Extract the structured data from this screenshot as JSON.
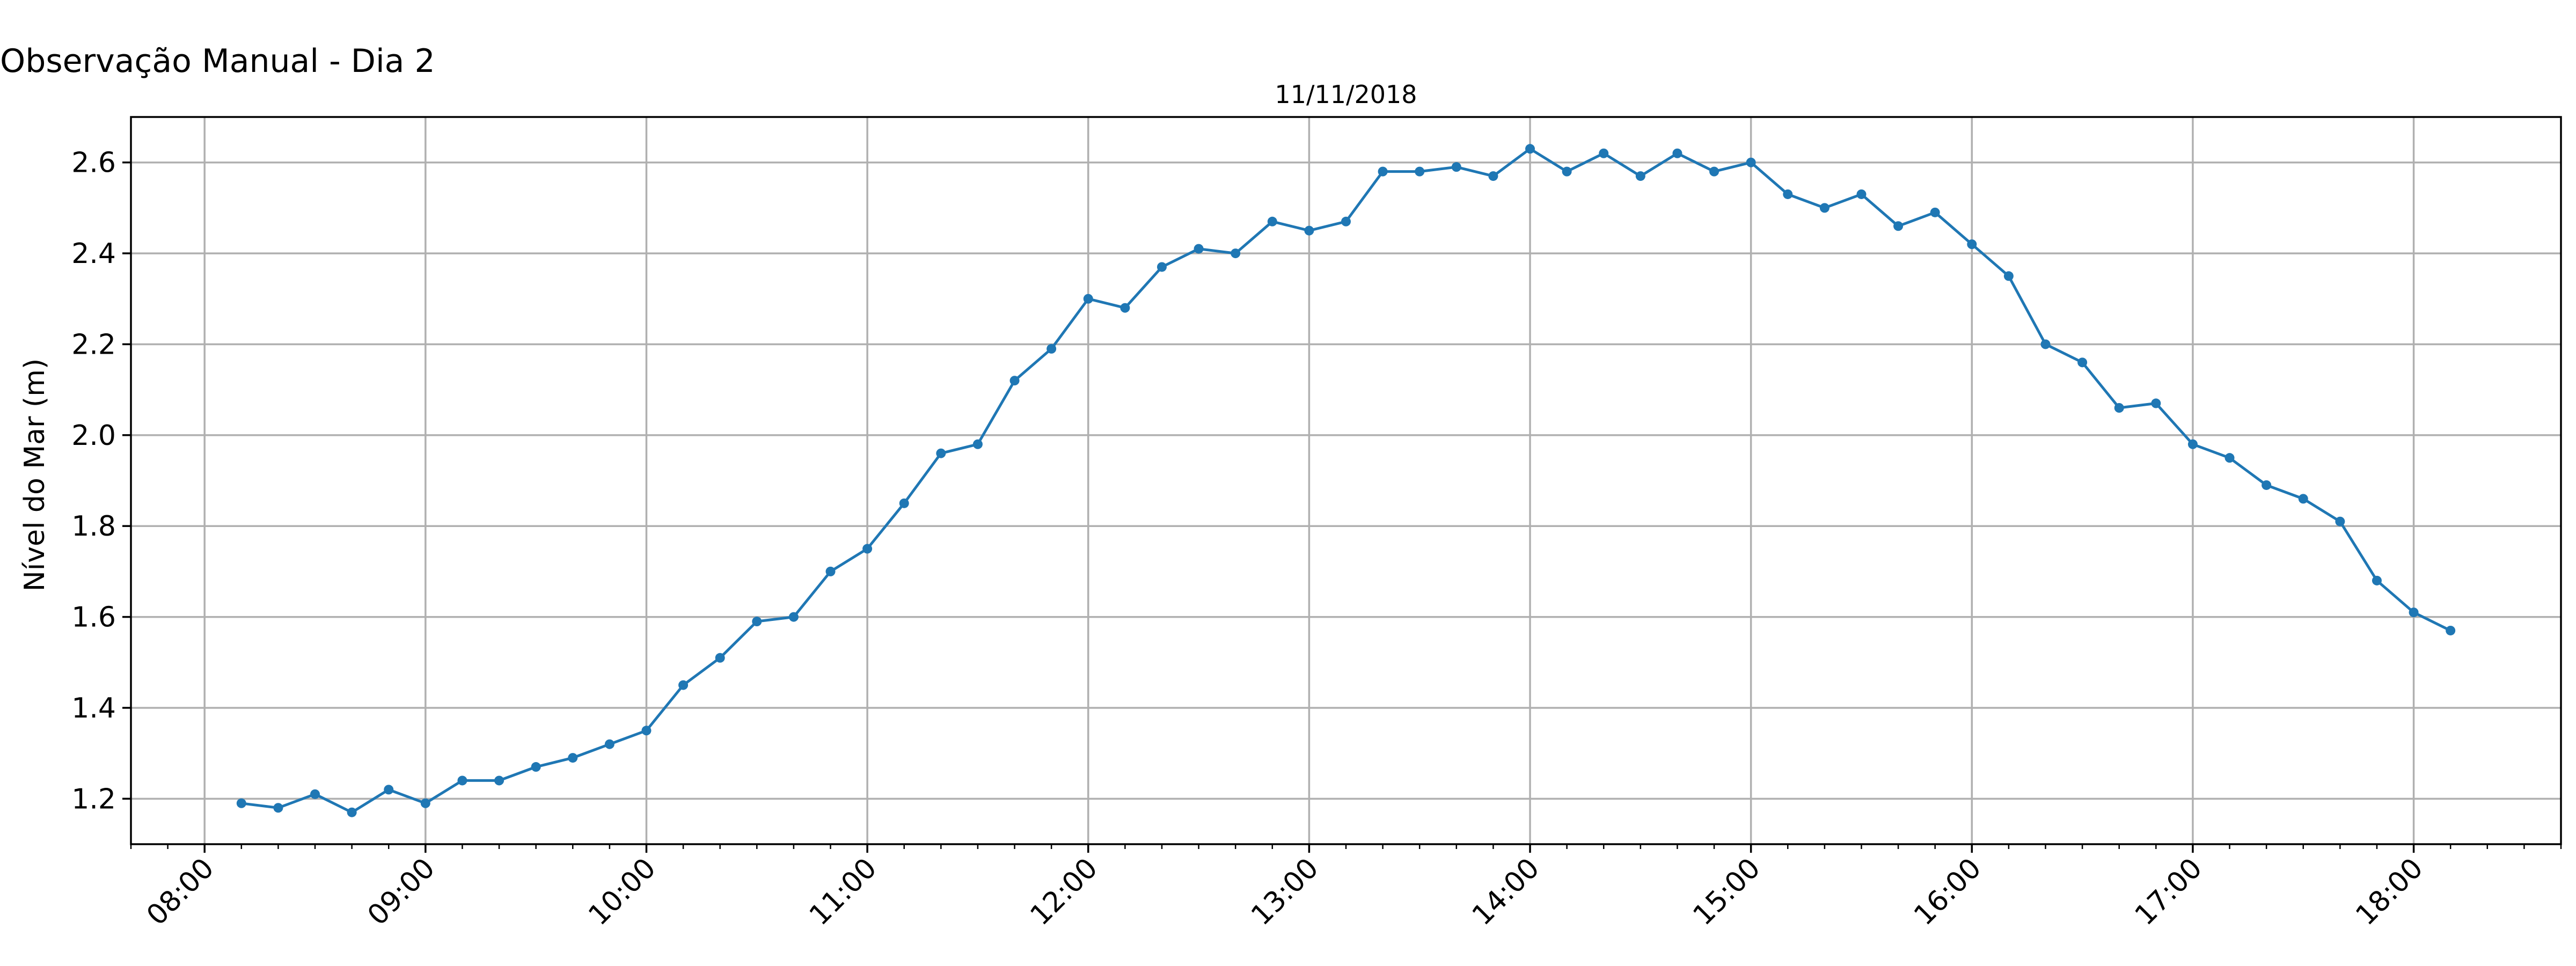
{
  "chart_data": {
    "type": "line",
    "suptitle": "Observação Manual - Dia 2",
    "title": "11/11/2018",
    "xlabel": "",
    "ylabel": "Nível do Mar (m)",
    "x_ticks": [
      "08:00",
      "09:00",
      "10:00",
      "11:00",
      "12:00",
      "13:00",
      "14:00",
      "15:00",
      "16:00",
      "17:00",
      "18:00"
    ],
    "y_ticks": [
      "1.2",
      "1.4",
      "1.6",
      "1.8",
      "2.0",
      "2.2",
      "2.4",
      "2.6"
    ],
    "xlim": [
      "07:40",
      "18:40"
    ],
    "ylim": [
      1.1,
      2.7
    ],
    "grid": true,
    "color": "#1f77b4",
    "series": [
      {
        "x": [
          "08:10",
          "08:20",
          "08:30",
          "08:40",
          "08:50",
          "09:00",
          "09:10",
          "09:20",
          "09:30",
          "09:40",
          "09:50",
          "10:00",
          "10:10",
          "10:20",
          "10:30",
          "10:40",
          "10:50",
          "11:00",
          "11:10",
          "11:20",
          "11:30",
          "11:40",
          "11:50",
          "12:00",
          "12:10",
          "12:20",
          "12:30",
          "12:40",
          "12:50",
          "13:00",
          "13:10",
          "13:20",
          "13:30",
          "13:40",
          "13:50",
          "14:00",
          "14:10",
          "14:20",
          "14:30",
          "14:40",
          "14:50",
          "15:00",
          "15:10",
          "15:20",
          "15:30",
          "15:40",
          "15:50",
          "16:00",
          "16:10",
          "16:20",
          "16:30",
          "16:40",
          "16:50",
          "17:00",
          "17:10",
          "17:20",
          "17:30",
          "17:40",
          "17:50",
          "18:00",
          "18:10"
        ],
        "y": [
          1.19,
          1.18,
          1.21,
          1.17,
          1.22,
          1.19,
          1.24,
          1.24,
          1.27,
          1.29,
          1.32,
          1.35,
          1.45,
          1.51,
          1.59,
          1.6,
          1.7,
          1.75,
          1.85,
          1.96,
          1.98,
          2.12,
          2.19,
          2.3,
          2.28,
          2.37,
          2.41,
          2.4,
          2.47,
          2.45,
          2.47,
          2.58,
          2.58,
          2.59,
          2.57,
          2.63,
          2.58,
          2.62,
          2.57,
          2.62,
          2.58,
          2.6,
          2.53,
          2.5,
          2.53,
          2.46,
          2.49,
          2.42,
          2.35,
          2.2,
          2.16,
          2.06,
          2.07,
          1.98,
          1.95,
          1.89,
          1.86,
          1.81,
          1.68,
          1.61,
          1.57
        ]
      }
    ]
  }
}
